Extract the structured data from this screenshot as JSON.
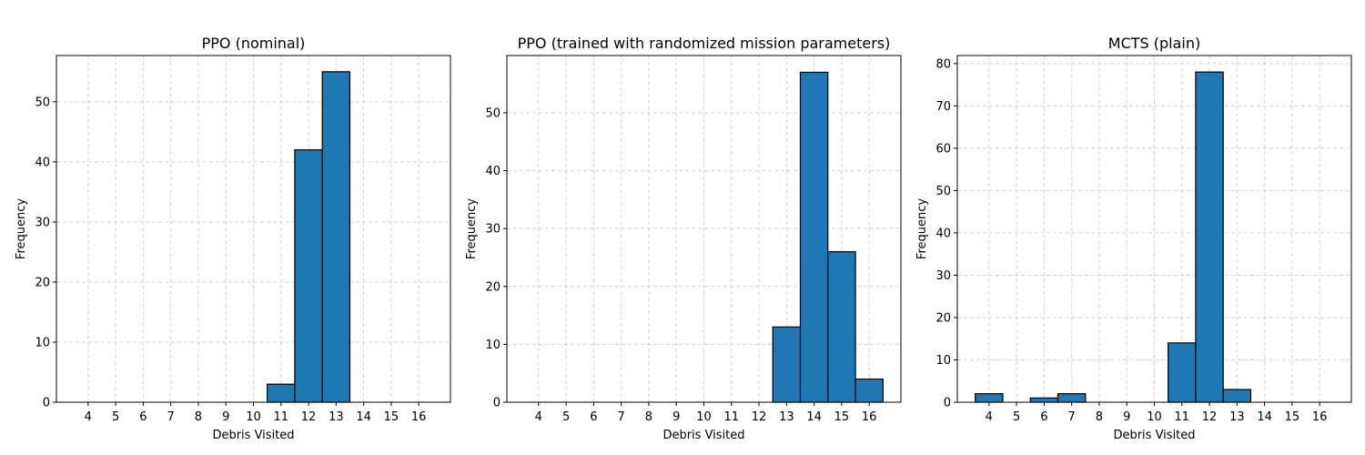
{
  "chart_data": [
    {
      "type": "bar",
      "title": "PPO (nominal)",
      "xlabel": "Debris Visited",
      "ylabel": "Frequency",
      "categories": [
        4,
        5,
        6,
        7,
        8,
        9,
        10,
        11,
        12,
        13,
        14,
        15,
        16
      ],
      "values": [
        0,
        0,
        0,
        0,
        0,
        0,
        0,
        3,
        42,
        55,
        0,
        0,
        0
      ],
      "xlim": [
        2.85,
        17.15
      ],
      "ylim": [
        0,
        57.7
      ],
      "yticks": [
        0,
        10,
        20,
        30,
        40,
        50
      ],
      "grid": true
    },
    {
      "type": "bar",
      "title": "PPO (trained with randomized mission parameters)",
      "xlabel": "Debris Visited",
      "ylabel": "Frequency",
      "categories": [
        4,
        5,
        6,
        7,
        8,
        9,
        10,
        11,
        12,
        13,
        14,
        15,
        16
      ],
      "values": [
        0,
        0,
        0,
        0,
        0,
        0,
        0,
        0,
        0,
        13,
        57,
        26,
        4
      ],
      "xlim": [
        2.85,
        17.15
      ],
      "ylim": [
        0,
        59.9
      ],
      "yticks": [
        0,
        10,
        20,
        30,
        40,
        50
      ],
      "grid": true
    },
    {
      "type": "bar",
      "title": "MCTS (plain)",
      "xlabel": "Debris Visited",
      "ylabel": "Frequency",
      "categories": [
        4,
        5,
        6,
        7,
        8,
        9,
        10,
        11,
        12,
        13,
        14,
        15,
        16
      ],
      "values": [
        2,
        0,
        1,
        2,
        0,
        0,
        0,
        14,
        78,
        3,
        0,
        0,
        0
      ],
      "xlim": [
        2.85,
        17.15
      ],
      "ylim": [
        0,
        81.9
      ],
      "yticks": [
        0,
        10,
        20,
        30,
        40,
        50,
        60,
        70,
        80
      ],
      "grid": true
    }
  ],
  "colors": {
    "bar": "#1f77b4",
    "edge": "#000000",
    "grid": "#d3d3d3"
  }
}
